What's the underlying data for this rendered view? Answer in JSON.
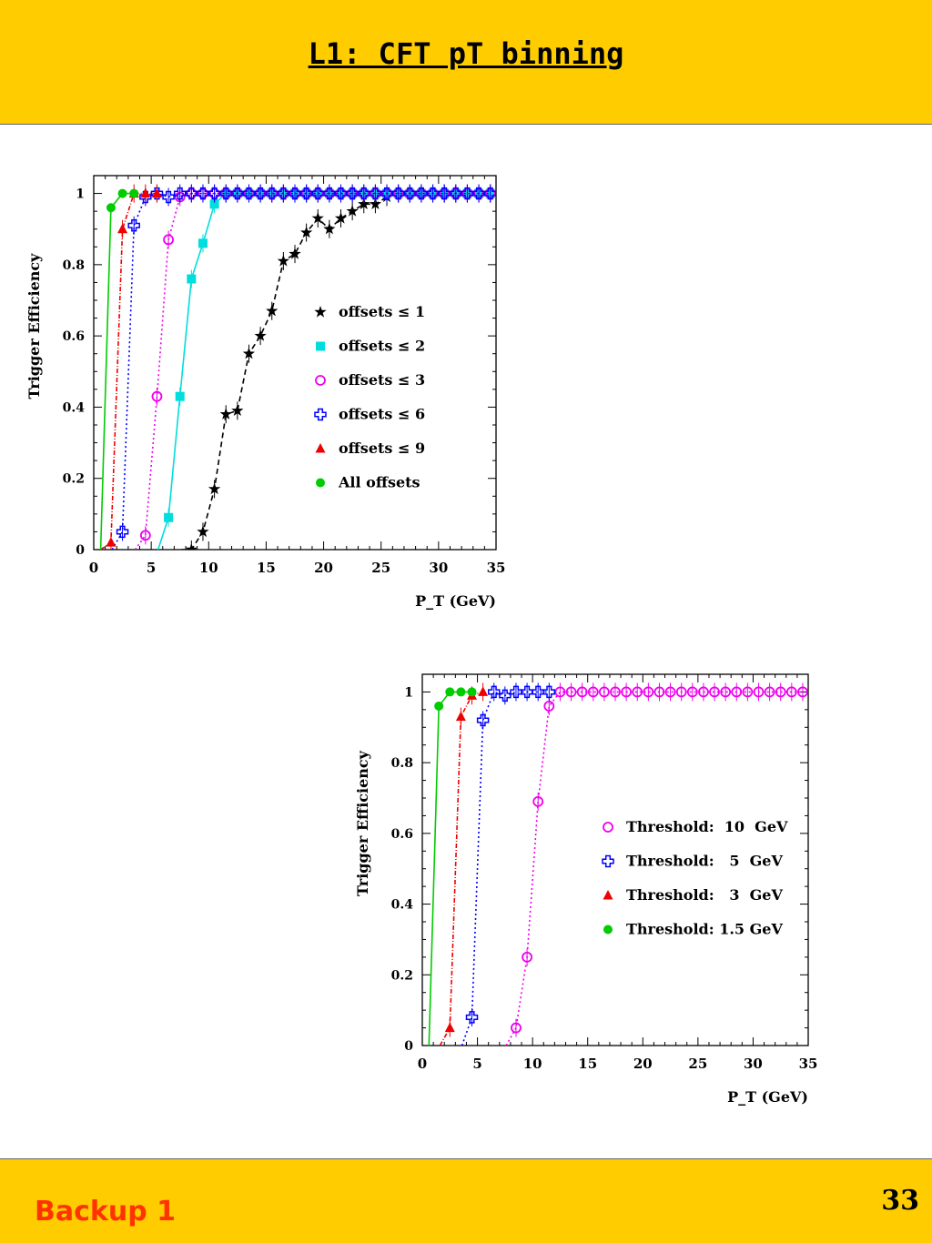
{
  "slide": {
    "title": "L1: CFT pT binning",
    "footer_label": "Backup 1",
    "page_number": "33",
    "colors": {
      "band": "#ffcc00",
      "footer_text": "#ff3300"
    }
  },
  "chart_data": [
    {
      "type": "scatter",
      "title": "",
      "xlabel": "P_T (GeV)",
      "ylabel": "Trigger Efficiency",
      "xlim": [
        0,
        35
      ],
      "ylim": [
        0,
        1.05
      ],
      "xticks": [
        "0",
        "5",
        "10",
        "15",
        "20",
        "25",
        "30",
        "35"
      ],
      "yticks": [
        "0",
        "0.2",
        "0.4",
        "0.6",
        "0.8",
        "1"
      ],
      "grid": false,
      "legend_position": "right",
      "series": [
        {
          "name": "offsets ≤ 1",
          "color": "#000000",
          "marker": "star",
          "dash": "6,4",
          "x": [
            8.5,
            9.5,
            10.5,
            11.5,
            12.5,
            13.5,
            14.5,
            15.5,
            16.5,
            17.5,
            18.5,
            19.5,
            20.5,
            21.5,
            22.5,
            23.5,
            24.5,
            25.5,
            26.5,
            27.5,
            28.5,
            29.5,
            30.5,
            31.5,
            32.5,
            33.5,
            34.5
          ],
          "y": [
            0.0,
            0.05,
            0.17,
            0.38,
            0.39,
            0.55,
            0.6,
            0.67,
            0.81,
            0.83,
            0.89,
            0.93,
            0.9,
            0.93,
            0.95,
            0.97,
            0.97,
            0.99,
            1.0,
            1.0,
            1.0,
            1.0,
            1.0,
            1.0,
            1.0,
            1.0,
            1.0
          ]
        },
        {
          "name": "offsets ≤ 2",
          "color": "#00dddd",
          "marker": "square",
          "dash": "",
          "x": [
            6.5,
            7.5,
            8.5,
            9.5,
            10.5,
            11.5,
            12.5,
            13.5,
            14.5,
            15.5,
            16.5,
            17.5,
            18.5,
            19.5,
            20.5,
            21.5,
            22.5,
            23.5,
            24.5,
            25.5,
            26.5,
            27.5,
            28.5,
            29.5,
            30.5,
            31.5,
            32.5,
            33.5,
            34.5
          ],
          "y": [
            0.09,
            0.43,
            0.76,
            0.86,
            0.97,
            1.0,
            1.0,
            1.0,
            1.0,
            1.0,
            1.0,
            1.0,
            1.0,
            1.0,
            1.0,
            1.0,
            1.0,
            1.0,
            1.0,
            1.0,
            1.0,
            1.0,
            1.0,
            1.0,
            1.0,
            1.0,
            1.0,
            1.0,
            1.0
          ]
        },
        {
          "name": "offsets ≤ 3",
          "color": "#ee00ee",
          "marker": "circle-open",
          "dash": "2,3",
          "x": [
            4.5,
            5.5,
            6.5,
            7.5,
            8.5,
            9.5,
            10.5,
            11.5,
            12.5,
            13.5,
            14.5,
            15.5,
            16.5,
            17.5,
            18.5,
            19.5,
            20.5,
            21.5,
            22.5,
            23.5,
            24.5,
            25.5,
            26.5,
            27.5,
            28.5,
            29.5,
            30.5,
            31.5,
            32.5,
            33.5,
            34.5
          ],
          "y": [
            0.04,
            0.43,
            0.87,
            0.99,
            1.0,
            1.0,
            1.0,
            1.0,
            1.0,
            1.0,
            1.0,
            1.0,
            1.0,
            1.0,
            1.0,
            1.0,
            1.0,
            1.0,
            1.0,
            1.0,
            1.0,
            1.0,
            1.0,
            1.0,
            1.0,
            1.0,
            1.0,
            1.0,
            1.0,
            1.0,
            1.0
          ]
        },
        {
          "name": "offsets ≤ 6",
          "color": "#0000ff",
          "marker": "cross-open",
          "dash": "2,3",
          "x": [
            2.5,
            3.5,
            4.5,
            5.5,
            6.5,
            7.5,
            8.5,
            9.5,
            10.5,
            11.5,
            12.5,
            13.5,
            14.5,
            15.5,
            16.5,
            17.5,
            18.5,
            19.5,
            20.5,
            21.5,
            22.5,
            23.5,
            24.5,
            25.5,
            26.5,
            27.5,
            28.5,
            29.5,
            30.5,
            31.5,
            32.5,
            33.5,
            34.5
          ],
          "y": [
            0.05,
            0.91,
            0.99,
            1.0,
            0.99,
            1.0,
            1.0,
            1.0,
            1.0,
            1.0,
            1.0,
            1.0,
            1.0,
            1.0,
            1.0,
            1.0,
            1.0,
            1.0,
            1.0,
            1.0,
            1.0,
            1.0,
            1.0,
            1.0,
            1.0,
            1.0,
            1.0,
            1.0,
            1.0,
            1.0,
            1.0,
            1.0,
            1.0
          ]
        },
        {
          "name": "offsets ≤ 9",
          "color": "#ee0000",
          "marker": "triangle",
          "dash": "5,2,1,2",
          "x": [
            1.5,
            2.5,
            3.5,
            4.5,
            5.5
          ],
          "y": [
            0.02,
            0.9,
            1.0,
            1.0,
            1.0
          ]
        },
        {
          "name": "All offsets",
          "color": "#00cc00",
          "marker": "circle",
          "dash": "",
          "x": [
            1.5,
            2.5,
            3.5
          ],
          "y": [
            0.96,
            1.0,
            1.0
          ]
        }
      ]
    },
    {
      "type": "scatter",
      "title": "",
      "xlabel": "P_T (GeV)",
      "ylabel": "Trigger Efficiency",
      "xlim": [
        0,
        35
      ],
      "ylim": [
        0,
        1.05
      ],
      "xticks": [
        "0",
        "5",
        "10",
        "15",
        "20",
        "25",
        "30",
        "35"
      ],
      "yticks": [
        "0",
        "0.2",
        "0.4",
        "0.6",
        "0.8",
        "1"
      ],
      "grid": false,
      "legend_position": "right",
      "series": [
        {
          "name": "Threshold:  10  GeV",
          "color": "#ee00ee",
          "marker": "circle-open",
          "dash": "2,3",
          "x": [
            8.5,
            9.5,
            10.5,
            11.5,
            12.5,
            13.5,
            14.5,
            15.5,
            16.5,
            17.5,
            18.5,
            19.5,
            20.5,
            21.5,
            22.5,
            23.5,
            24.5,
            25.5,
            26.5,
            27.5,
            28.5,
            29.5,
            30.5,
            31.5,
            32.5,
            33.5,
            34.5
          ],
          "y": [
            0.05,
            0.25,
            0.69,
            0.96,
            1.0,
            1.0,
            1.0,
            1.0,
            1.0,
            1.0,
            1.0,
            1.0,
            1.0,
            1.0,
            1.0,
            1.0,
            1.0,
            1.0,
            1.0,
            1.0,
            1.0,
            1.0,
            1.0,
            1.0,
            1.0,
            1.0,
            1.0
          ]
        },
        {
          "name": "Threshold:   5  GeV",
          "color": "#0000ff",
          "marker": "cross-open",
          "dash": "2,3",
          "x": [
            4.5,
            5.5,
            6.5,
            7.5,
            8.5,
            9.5,
            10.5,
            11.5
          ],
          "y": [
            0.08,
            0.92,
            1.0,
            0.99,
            1.0,
            1.0,
            1.0,
            1.0
          ]
        },
        {
          "name": "Threshold:   3  GeV",
          "color": "#ee0000",
          "marker": "triangle",
          "dash": "5,2,1,2",
          "x": [
            2.5,
            3.5,
            4.5,
            5.5
          ],
          "y": [
            0.05,
            0.93,
            0.99,
            1.0
          ]
        },
        {
          "name": "Threshold: 1.5 GeV",
          "color": "#00cc00",
          "marker": "circle",
          "dash": "",
          "x": [
            1.5,
            2.5,
            3.5,
            4.5
          ],
          "y": [
            0.96,
            1.0,
            1.0,
            1.0
          ]
        }
      ]
    }
  ]
}
